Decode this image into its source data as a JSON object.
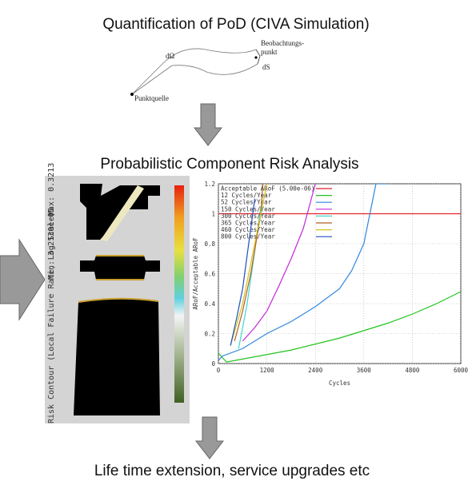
{
  "header": {
    "title": "Quantification of PoD (CIVA Simulation)"
  },
  "sketch": {
    "labels": [
      "dΩ",
      "Beobachtungs-",
      "punkt",
      "dS",
      "Punktquelle"
    ]
  },
  "section": {
    "title": "Probabilistic Component Risk Analysis"
  },
  "contour": {
    "label": "Risk Contour (Local Failure Rate, Log Scale)",
    "min": "Min: 3.2130e-05",
    "max": "Max: 0.3213"
  },
  "chart_data": {
    "type": "line",
    "xlabel": "Cycles",
    "ylabel": "ARoF/Acceptable ARoF",
    "xlim": [
      0,
      6000
    ],
    "ylim": [
      0,
      1.2
    ],
    "xticks": [
      0,
      1200,
      2400,
      3600,
      4800,
      6000
    ],
    "yticks": [
      0,
      0.2,
      0.4,
      0.6,
      0.8,
      1,
      1.2
    ],
    "series": [
      {
        "name": "Acceptable ARoF (5.00e-06)",
        "color": "#e8202a",
        "x": [
          0,
          6000
        ],
        "values": [
          1,
          1
        ]
      },
      {
        "name": "12 Cycles/Year",
        "color": "#22c41e",
        "x": [
          0,
          200,
          600,
          1200,
          1800,
          2400,
          3000,
          3600,
          4200,
          4800,
          5400,
          6000
        ],
        "values": [
          0.07,
          0.01,
          0.03,
          0.06,
          0.09,
          0.13,
          0.17,
          0.22,
          0.27,
          0.33,
          0.4,
          0.48
        ]
      },
      {
        "name": "52 Cycles/Year",
        "color": "#2e86e0",
        "x": [
          0,
          100,
          600,
          1200,
          1800,
          2400,
          3000,
          3300,
          3600,
          3900,
          4200
        ],
        "values": [
          0.02,
          0.05,
          0.1,
          0.2,
          0.28,
          0.38,
          0.5,
          0.62,
          0.8,
          1.2,
          1.2
        ]
      },
      {
        "name": "150 Cycles/Year",
        "color": "#c428d8",
        "x": [
          600,
          900,
          1200,
          1500,
          1800,
          2100,
          2400
        ],
        "values": [
          0.15,
          0.24,
          0.35,
          0.52,
          0.7,
          0.9,
          1.2
        ]
      },
      {
        "name": "300 Cycles/Year",
        "color": "#3cd8d0",
        "x": [
          500,
          700,
          900,
          1050
        ],
        "values": [
          0.1,
          0.38,
          0.75,
          1.05
        ]
      },
      {
        "name": "365 Cycles/Year",
        "color": "#b06020",
        "x": [
          400,
          600,
          800,
          1050,
          1100
        ],
        "values": [
          0.15,
          0.35,
          0.6,
          1.0,
          1.2
        ]
      },
      {
        "name": "460 Cycles/Year",
        "color": "#d8c020",
        "x": [
          300,
          600,
          900,
          1200
        ],
        "values": [
          0.12,
          0.4,
          0.8,
          1.2
        ]
      },
      {
        "name": "800 Cycles/Year",
        "color": "#2050c0",
        "x": [
          300,
          450,
          600,
          800,
          900
        ],
        "values": [
          0.12,
          0.3,
          0.5,
          0.9,
          1.1
        ]
      }
    ]
  },
  "footer": {
    "title": "Life time extension, service upgrades etc"
  }
}
